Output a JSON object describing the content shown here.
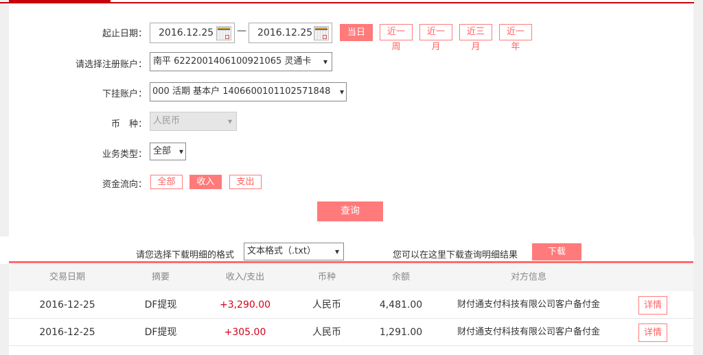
{
  "form": {
    "date_label": "起止日期：",
    "start_date": "2016.12.25",
    "end_date": "2016.12.25",
    "date_sep": "—",
    "quick_ranges": [
      "当日",
      "近一周",
      "近一月",
      "近三月",
      "近一年"
    ],
    "account_label": "请选择注册账户：",
    "account_value": "南平 6222001406100921065 灵通卡",
    "sub_account_label": "下挂账户：",
    "sub_account_value": "000 活期 基本户 1406600101102571848",
    "currency_label": "币　种：",
    "currency_value": "人民币",
    "type_label": "业务类型：",
    "type_value": "全部",
    "flow_label": "资金流向：",
    "flow_options": [
      "全部",
      "收入",
      "支出"
    ],
    "flow_selected": "收入",
    "query_label": "查询"
  },
  "download": {
    "format_label": "请您选择下载明细的格式",
    "format_value": "文本格式（.txt）",
    "hint": "您可以在这里下载查询明细结果",
    "button": "下载"
  },
  "table": {
    "headers": [
      "交易日期",
      "摘要",
      "收入/支出",
      "币种",
      "余额",
      "对方信息"
    ],
    "rows": [
      {
        "date": "2016-12-25",
        "summary": "DF提现",
        "amount": "+3,290.00",
        "currency": "人民币",
        "balance": "4,481.00",
        "counterparty": "财付通支付科技有限公司客户备付金",
        "action": "详情"
      },
      {
        "date": "2016-12-25",
        "summary": "DF提现",
        "amount": "+305.00",
        "currency": "人民币",
        "balance": "1,291.00",
        "counterparty": "财付通支付科技有限公司客户备付金",
        "action": "详情"
      }
    ]
  },
  "colors": {
    "accent": "#ff7a7a",
    "brand": "#c8000a",
    "amount": "#d0021b"
  }
}
